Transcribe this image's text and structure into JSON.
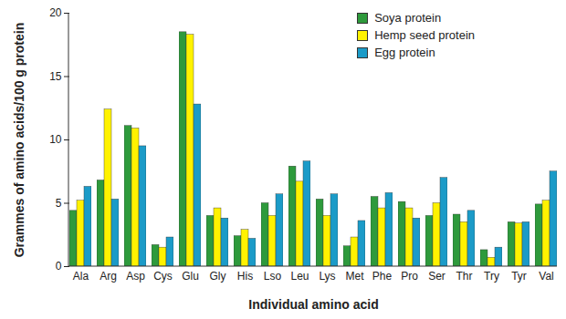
{
  "chart_data": {
    "type": "bar",
    "xlabel": "Individual amino acid",
    "ylabel": "Grammes of amino acids/100 g protein",
    "categories": [
      "Ala",
      "Arg",
      "Asp",
      "Cys",
      "Glu",
      "Gly",
      "His",
      "Lso",
      "Leu",
      "Lys",
      "Met",
      "Phe",
      "Pro",
      "Ser",
      "Thr",
      "Try",
      "Tyr",
      "Val"
    ],
    "series": [
      {
        "name": "Soya protein",
        "color": "#2e9a3c",
        "values": [
          4.4,
          6.8,
          11.1,
          1.7,
          18.5,
          4.0,
          2.4,
          5.0,
          7.9,
          5.3,
          1.6,
          5.5,
          5.1,
          4.0,
          4.1,
          1.3,
          3.5,
          4.9
        ]
      },
      {
        "name": "Hemp seed protein",
        "color": "#fff200",
        "values": [
          5.2,
          12.4,
          10.9,
          1.5,
          18.3,
          4.6,
          2.9,
          4.0,
          6.7,
          4.0,
          2.3,
          4.6,
          4.6,
          5.0,
          3.5,
          0.7,
          3.4,
          5.2
        ]
      },
      {
        "name": "Egg protein",
        "color": "#1b9bc8",
        "values": [
          6.3,
          5.3,
          9.5,
          2.3,
          12.8,
          3.8,
          2.2,
          5.7,
          8.3,
          5.7,
          3.6,
          5.8,
          3.8,
          7.0,
          4.4,
          1.5,
          3.5,
          7.5
        ]
      }
    ],
    "ylim": [
      0,
      20
    ],
    "yticks": [
      0,
      5,
      10,
      15,
      20
    ],
    "grid": false,
    "legend": "upper right"
  }
}
